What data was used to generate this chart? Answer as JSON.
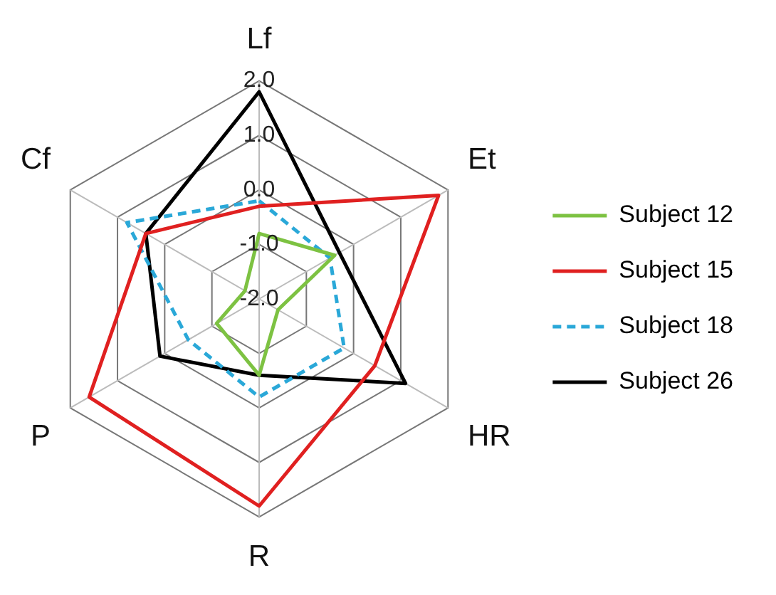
{
  "chart_data": {
    "type": "radar",
    "categories": [
      "Lf",
      "Et",
      "HR",
      "R",
      "P",
      "Cf"
    ],
    "series": [
      {
        "name": "Subject 12",
        "color": "#7dc242",
        "line_style": "solid",
        "values": [
          -0.8,
          -0.4,
          -1.6,
          -0.6,
          -1.1,
          -1.7
        ]
      },
      {
        "name": "Subject 15",
        "color": "#e02020",
        "line_style": "solid",
        "values": [
          -0.3,
          1.8,
          0.45,
          1.8,
          1.6,
          0.4
        ]
      },
      {
        "name": "Subject 18",
        "color": "#2aa8d8",
        "line_style": "dashed",
        "values": [
          -0.2,
          -0.5,
          -0.2,
          -0.2,
          -0.5,
          0.8
        ]
      },
      {
        "name": "Subject 26",
        "color": "#000000",
        "line_style": "solid",
        "values": [
          1.8,
          -0.3,
          1.1,
          -0.6,
          0.1,
          0.4
        ]
      }
    ],
    "ylim": [
      -2,
      2
    ],
    "yticks": [
      {
        "value": -2,
        "label": "-2.0"
      },
      {
        "value": -1,
        "label": "-1.0"
      },
      {
        "value": 0,
        "label": "0.0"
      },
      {
        "value": 1,
        "label": "1.0"
      },
      {
        "value": 2,
        "label": "2.0"
      }
    ],
    "grid": true,
    "legend": "right",
    "marker": "none"
  }
}
